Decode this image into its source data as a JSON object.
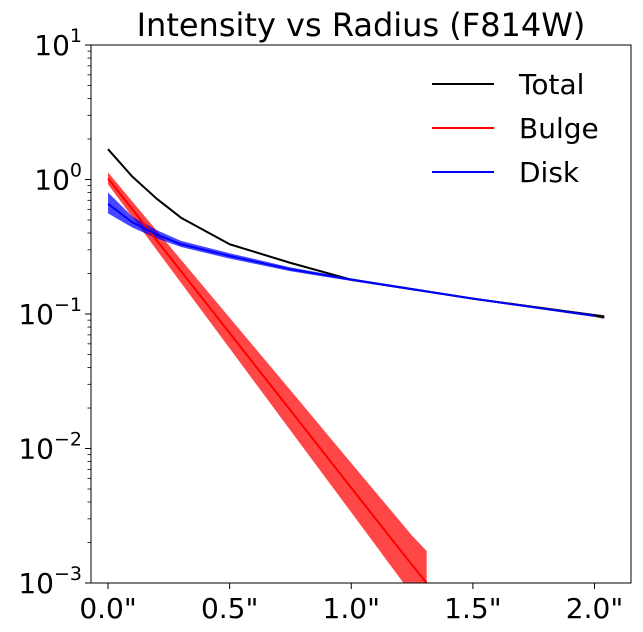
{
  "chart_data": {
    "type": "line",
    "title": "Intensity vs Radius (F814W)",
    "xlabel": "",
    "ylabel": "",
    "xlim": [
      -0.07,
      2.15
    ],
    "ylim": [
      0.001,
      10
    ],
    "yscale": "log",
    "grid": false,
    "legend_position": "top-right",
    "x_ticks": [
      {
        "value": 0.0,
        "label": "0.0\""
      },
      {
        "value": 0.5,
        "label": "0.5\""
      },
      {
        "value": 1.0,
        "label": "1.0\""
      },
      {
        "value": 1.5,
        "label": "1.5\""
      },
      {
        "value": 2.0,
        "label": "2.0\""
      }
    ],
    "y_ticks": [
      {
        "value": 0.001,
        "base": "10",
        "exp": "−3"
      },
      {
        "value": 0.01,
        "base": "10",
        "exp": "−2"
      },
      {
        "value": 0.1,
        "base": "10",
        "exp": "−1"
      },
      {
        "value": 1,
        "base": "10",
        "exp": "0"
      },
      {
        "value": 10,
        "base": "10",
        "exp": "1"
      }
    ],
    "series": [
      {
        "name": "Total",
        "color": "#000000",
        "x": [
          0.0,
          0.1,
          0.2,
          0.3,
          0.5,
          0.75,
          1.0,
          1.5,
          2.0,
          2.04
        ],
        "values": [
          1.68,
          1.05,
          0.72,
          0.52,
          0.33,
          0.24,
          0.18,
          0.13,
          0.098,
          0.095
        ],
        "band_lower": [
          1.66,
          1.04,
          0.71,
          0.515,
          0.327,
          0.238,
          0.178,
          0.128,
          0.095,
          0.092
        ],
        "band_upper": [
          1.7,
          1.06,
          0.73,
          0.525,
          0.333,
          0.242,
          0.182,
          0.132,
          0.1,
          0.098
        ]
      },
      {
        "name": "Bulge",
        "color": "#ff0000",
        "x": [
          0.0,
          0.25,
          0.5,
          0.75,
          1.0,
          1.25,
          1.31
        ],
        "values": [
          1.02,
          0.271,
          0.0722,
          0.0192,
          0.0051,
          0.00136,
          0.001
        ],
        "band_lower": [
          0.92,
          0.226,
          0.0555,
          0.0136,
          0.00335,
          0.00082,
          0.00059
        ],
        "band_upper": [
          1.13,
          0.325,
          0.0938,
          0.0271,
          0.00779,
          0.00225,
          0.00173
        ]
      },
      {
        "name": "Disk",
        "color": "#0000ff",
        "x": [
          0.0,
          0.1,
          0.2,
          0.3,
          0.5,
          0.75,
          1.0,
          1.5,
          2.0
        ],
        "values": [
          0.66,
          0.48,
          0.39,
          0.33,
          0.27,
          0.215,
          0.18,
          0.13,
          0.097
        ],
        "band_lower": [
          0.56,
          0.44,
          0.365,
          0.315,
          0.258,
          0.208,
          0.176,
          0.128,
          0.096
        ],
        "band_upper": [
          0.8,
          0.53,
          0.42,
          0.35,
          0.283,
          0.222,
          0.184,
          0.132,
          0.099
        ]
      }
    ]
  }
}
